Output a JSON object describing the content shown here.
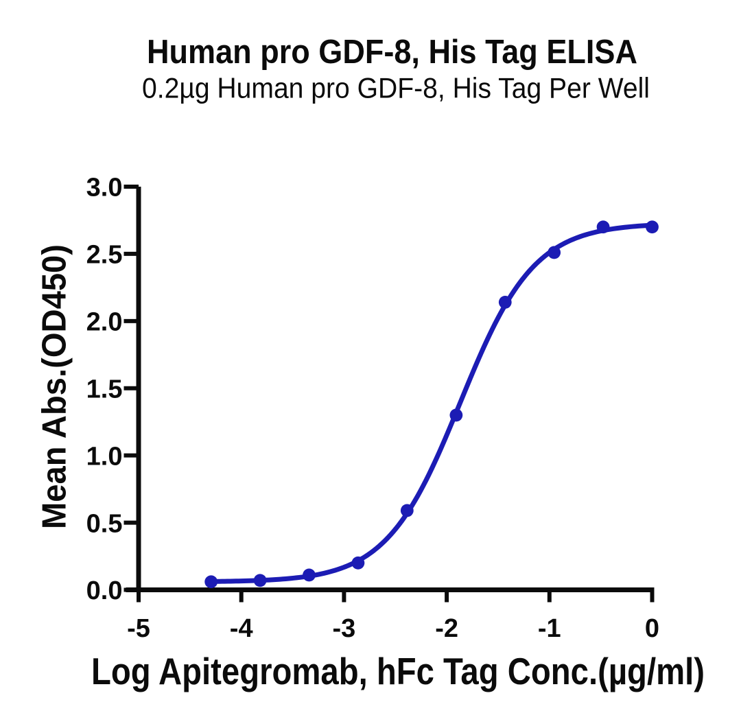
{
  "chart_data": {
    "type": "line",
    "title": "Human pro GDF-8, His Tag ELISA",
    "subtitle": "0.2µg Human pro GDF-8, His Tag Per Well",
    "xlabel": "Log Apitegromab, hFc Tag Conc.(µg/ml)",
    "ylabel": "Mean Abs.(OD450)",
    "x": [
      -4.294,
      -3.817,
      -3.34,
      -2.863,
      -2.386,
      -1.908,
      -1.431,
      -0.954,
      -0.477,
      0.0
    ],
    "y": [
      0.06,
      0.07,
      0.11,
      0.2,
      0.59,
      1.3,
      2.14,
      2.51,
      2.7,
      2.7
    ],
    "xlim": [
      -5,
      0
    ],
    "ylim": [
      0,
      3
    ],
    "xticks": [
      -5,
      -4,
      -3,
      -2,
      -1,
      0
    ],
    "xtick_labels": [
      "-5",
      "-4",
      "-3",
      "-2",
      "-1",
      "0"
    ],
    "yticks": [
      0,
      0.5,
      1,
      1.5,
      2,
      2.5,
      3
    ],
    "ytick_labels": [
      "0.0",
      "0.5",
      "1.0",
      "1.5",
      "2.0",
      "2.5",
      "3.0"
    ],
    "fit_curve": {
      "model": "4PL",
      "bottom": 0.0587,
      "top": 2.728,
      "logec50": -1.8685,
      "hill": 1.2095
    },
    "series_color": "#1c1cb4",
    "axis_color": "#0b0b0b",
    "grid": false,
    "legend": "none"
  }
}
